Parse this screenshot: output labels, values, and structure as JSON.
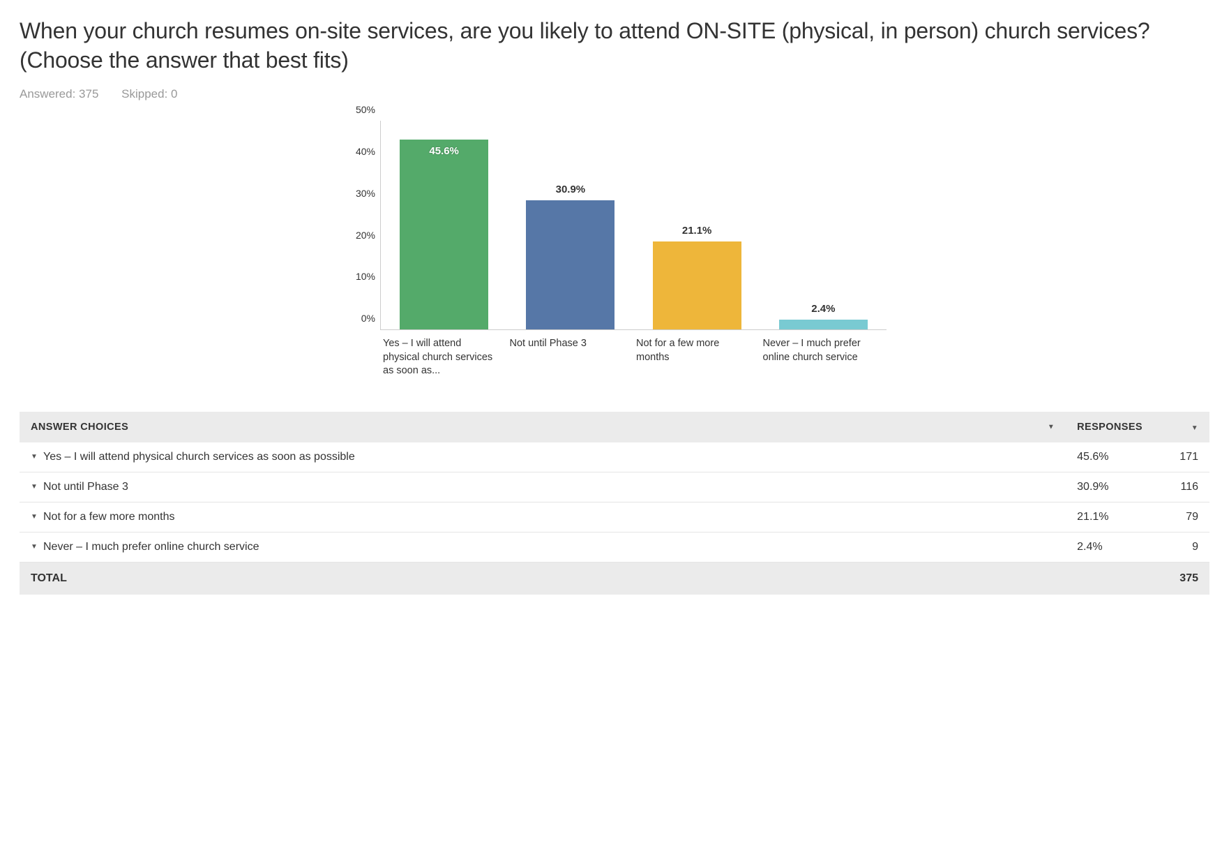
{
  "question": {
    "title": "When your church resumes on-site services, are you likely to attend ON-SITE (physical, in person) church services? (Choose the answer that best fits)",
    "answered_label": "Answered: 375",
    "skipped_label": "Skipped: 0"
  },
  "chart": {
    "type": "bar",
    "ylim_max": 50,
    "ytick_step": 10,
    "ytick_suffix": "%",
    "axis_color": "#cccccc",
    "label_fontsize": 14,
    "bar_width_pct": 70,
    "background_color": "#ffffff",
    "series": [
      {
        "category": "Yes – I will attend physical church services as soon as...",
        "value": 45.6,
        "display": "45.6%",
        "color": "#54aa6a",
        "label_inside": true
      },
      {
        "category": "Not until Phase 3",
        "value": 30.9,
        "display": "30.9%",
        "color": "#5677a7",
        "label_inside": false
      },
      {
        "category": "Not for a few more months",
        "value": 21.1,
        "display": "21.1%",
        "color": "#eeb63a",
        "label_inside": false
      },
      {
        "category": "Never – I much prefer online church service",
        "value": 2.4,
        "display": "2.4%",
        "color": "#79cad2",
        "label_inside": false
      }
    ]
  },
  "table": {
    "headers": {
      "answer_choices": "ANSWER CHOICES",
      "responses": "RESPONSES"
    },
    "rows": [
      {
        "label": "Yes – I will attend physical church services as soon as possible",
        "pct": "45.6%",
        "count": "171"
      },
      {
        "label": "Not until Phase 3",
        "pct": "30.9%",
        "count": "116"
      },
      {
        "label": "Not for a few more months",
        "pct": "21.1%",
        "count": "79"
      },
      {
        "label": "Never – I much prefer online church service",
        "pct": "2.4%",
        "count": "9"
      }
    ],
    "total": {
      "label": "TOTAL",
      "count": "375"
    }
  },
  "colors": {
    "text": "#333333",
    "muted": "#999999",
    "header_bg": "#ebebeb",
    "row_border": "#e5e5e5"
  }
}
